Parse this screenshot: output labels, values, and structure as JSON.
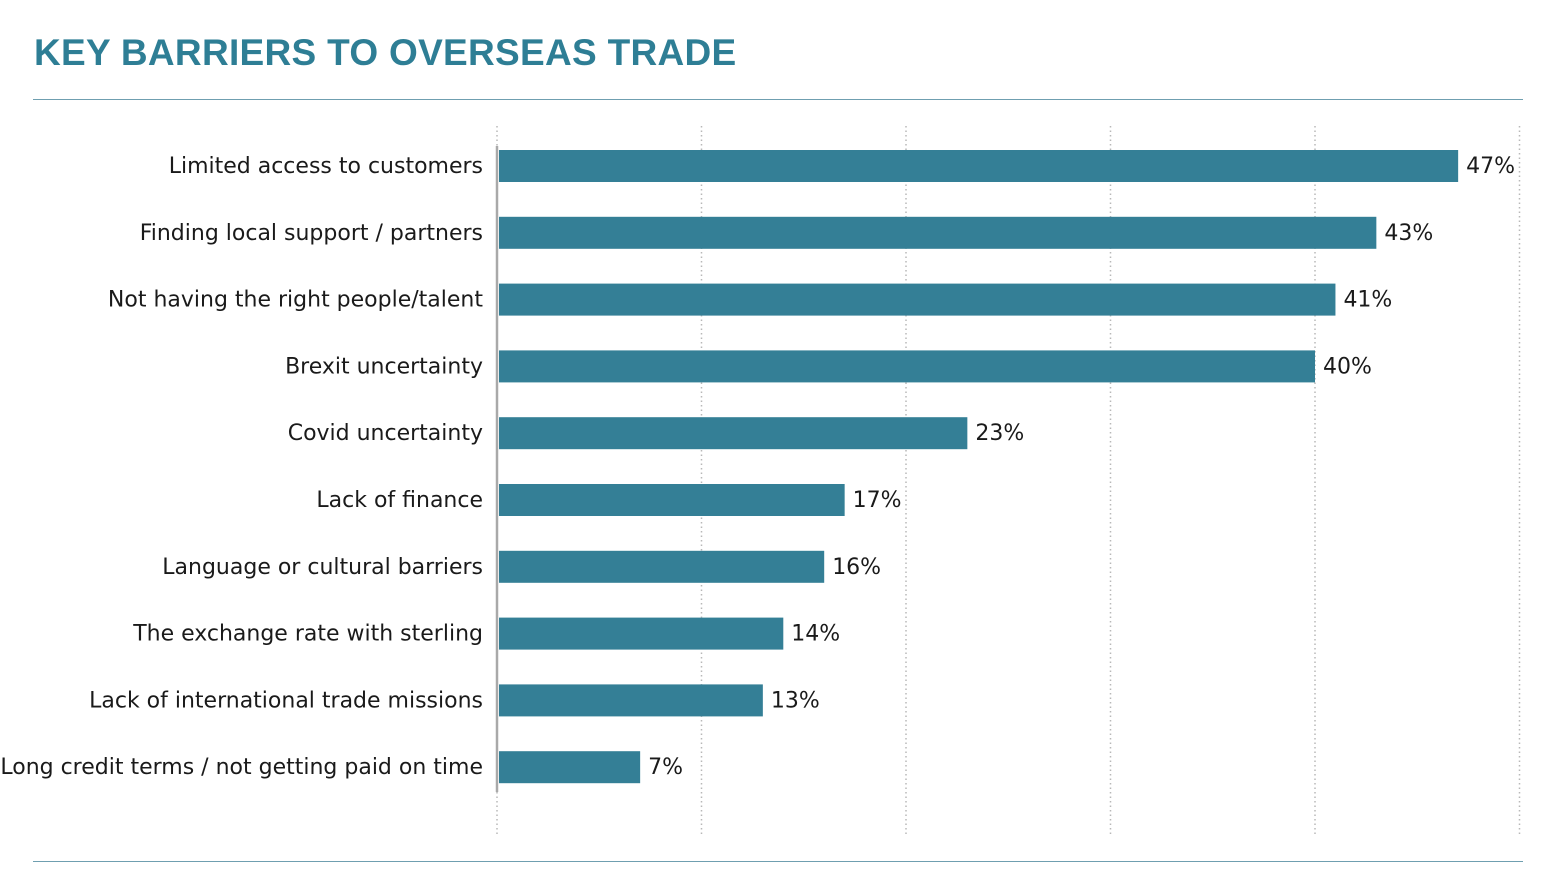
{
  "title": "KEY BARRIERS TO OVERSEAS TRADE",
  "colors": {
    "title": "#2e7e95",
    "bar": "#347f96",
    "rule": "#6f9fb0",
    "grid": "#b8b8b8",
    "axis": "#a9a9a9"
  },
  "chart_data": {
    "type": "bar",
    "orientation": "horizontal",
    "categories": [
      "Limited access to customers",
      "Finding local support / partners",
      "Not having the right people/talent",
      "Brexit uncertainty",
      "Covid uncertainty",
      "Lack of finance",
      "Language or cultural barriers",
      "The exchange rate with sterling",
      "Lack of international trade missions",
      "Long credit terms / not getting paid on time"
    ],
    "values": [
      47,
      43,
      41,
      40,
      23,
      17,
      16,
      14,
      13,
      7
    ],
    "value_labels": [
      "47%",
      "43%",
      "41%",
      "40%",
      "23%",
      "17%",
      "16%",
      "14%",
      "13%",
      "7%"
    ],
    "xlim": [
      0,
      50
    ],
    "grid": true,
    "legend": "none"
  }
}
